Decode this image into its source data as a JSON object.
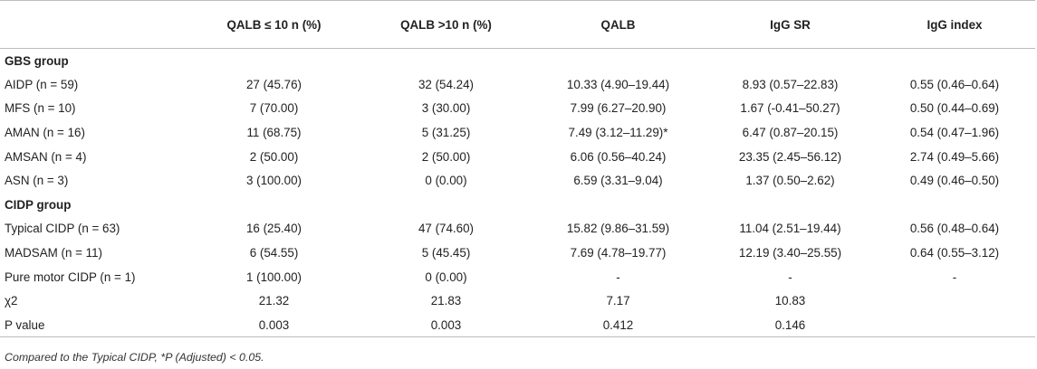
{
  "table": {
    "headers": [
      "",
      "QALB ≤ 10 n (%)",
      "QALB >10 n (%)",
      "QALB",
      "IgG SR",
      "IgG index"
    ],
    "sections": [
      {
        "group": "GBS group",
        "rows": [
          [
            "AIDP (n = 59)",
            "27 (45.76)",
            "32 (54.24)",
            "10.33 (4.90–19.44)",
            "8.93 (0.57–22.83)",
            "0.55 (0.46–0.64)"
          ],
          [
            "MFS (n = 10)",
            "7 (70.00)",
            "3 (30.00)",
            "7.99 (6.27–20.90)",
            "1.67 (-0.41–50.27)",
            "0.50 (0.44–0.69)"
          ],
          [
            "AMAN (n = 16)",
            "11 (68.75)",
            "5 (31.25)",
            "7.49 (3.12–11.29)*",
            "6.47 (0.87–20.15)",
            "0.54 (0.47–1.96)"
          ],
          [
            "AMSAN (n = 4)",
            "2 (50.00)",
            "2 (50.00)",
            "6.06 (0.56–40.24)",
            "23.35 (2.45–56.12)",
            "2.74 (0.49–5.66)"
          ],
          [
            "ASN (n = 3)",
            "3 (100.00)",
            "0 (0.00)",
            "6.59 (3.31–9.04)",
            "1.37 (0.50–2.62)",
            "0.49 (0.46–0.50)"
          ]
        ]
      },
      {
        "group": "CIDP group",
        "rows": [
          [
            "Typical CIDP (n = 63)",
            "16 (25.40)",
            "47 (74.60)",
            "15.82 (9.86–31.59)",
            "11.04 (2.51–19.44)",
            "0.56 (0.48–0.64)"
          ],
          [
            "MADSAM (n = 11)",
            "6 (54.55)",
            "5 (45.45)",
            "7.69 (4.78–19.77)",
            "12.19 (3.40–25.55)",
            "0.64 (0.55–3.12)"
          ],
          [
            "Pure motor CIDP (n = 1)",
            "1 (100.00)",
            "0 (0.00)",
            "-",
            "-",
            "-"
          ]
        ]
      }
    ],
    "stats": [
      [
        "χ2",
        "21.32",
        "21.83",
        "7.17",
        "10.83",
        ""
      ],
      [
        "P value",
        "0.003",
        "0.003",
        "0.412",
        "0.146",
        ""
      ]
    ]
  },
  "footnote": "Compared to the Typical CIDP, *P (Adjusted) < 0.05."
}
